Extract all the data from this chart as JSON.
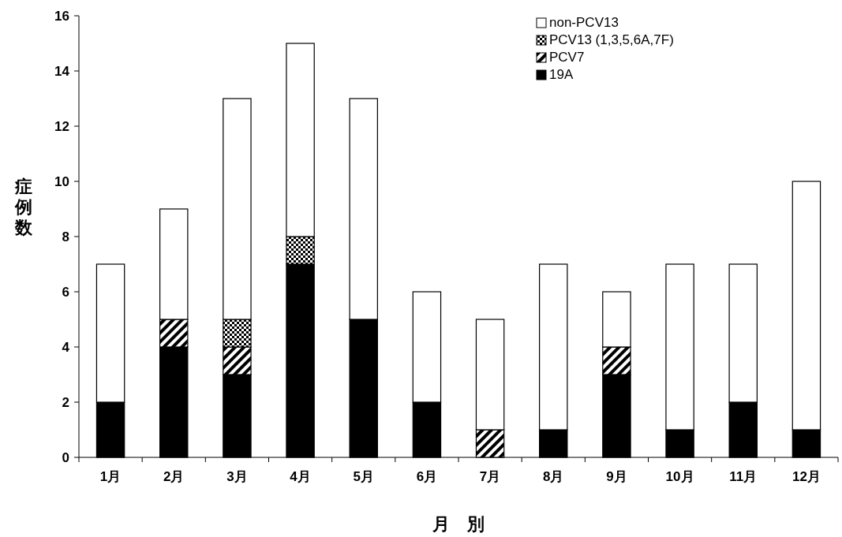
{
  "chart_data": {
    "type": "bar",
    "stacked": true,
    "categories": [
      "1月",
      "2月",
      "3月",
      "4月",
      "5月",
      "6月",
      "7月",
      "8月",
      "9月",
      "10月",
      "11月",
      "12月"
    ],
    "series": [
      {
        "name": "19A",
        "color": "#000000",
        "values": [
          2,
          4,
          3,
          7,
          5,
          2,
          0,
          1,
          3,
          1,
          2,
          1
        ]
      },
      {
        "name": "PCV7",
        "color": "#000000",
        "values": [
          0,
          1,
          1,
          0,
          0,
          0,
          1,
          0,
          1,
          0,
          0,
          0
        ]
      },
      {
        "name": "PCV13 (1,3,5,6A,7F)",
        "color": "#000000",
        "values": [
          0,
          0,
          1,
          1,
          0,
          0,
          0,
          0,
          0,
          0,
          0,
          0
        ]
      },
      {
        "name": "non-PCV13",
        "color": "#ffffff",
        "values": [
          5,
          4,
          8,
          7,
          8,
          4,
          4,
          6,
          2,
          6,
          5,
          9
        ]
      }
    ],
    "xlabel": "月　別",
    "ylabel": "症例数",
    "ylim": [
      0,
      16
    ],
    "yticks": [
      0,
      2,
      4,
      6,
      8,
      10,
      12,
      14,
      16
    ],
    "legend": "top right",
    "grid": false
  }
}
